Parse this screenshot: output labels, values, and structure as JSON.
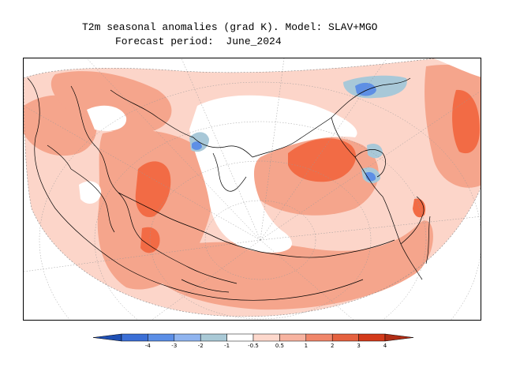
{
  "title": {
    "line1": "T2m seasonal anomalies (grad K). Model: SLAV+MGO",
    "line2": "Forecast period:  June_2024"
  },
  "legend": {
    "ticks": [
      "-4",
      "-3",
      "-2",
      "-1",
      "-0.5",
      "0.5",
      "1",
      "2",
      "3",
      "4"
    ],
    "colors": [
      "#1f4fb3",
      "#3b6fd6",
      "#5b8ee6",
      "#8fb4ef",
      "#a9c9d6",
      "#ffffff",
      "#fdd8cc",
      "#f7b3a0",
      "#f0866a",
      "#e5613f",
      "#d33a1a",
      "#b02d15"
    ]
  },
  "map": {
    "projection": "polar-stereographic-north",
    "anomaly_colors": {
      "strong_warm": "#f26b45",
      "warm": "#f5a58c",
      "mild_warm": "#fcd5c9",
      "neutral": "#ffffff",
      "mild_cold": "#a8c8d8",
      "cold": "#5e8fe5"
    }
  }
}
